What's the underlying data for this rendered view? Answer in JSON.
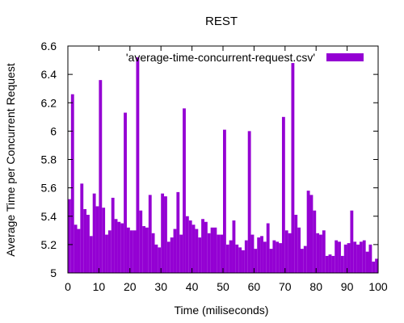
{
  "chart_data": {
    "type": "bar",
    "title": "REST",
    "xlabel": "Time (miliseconds)",
    "ylabel": "Average Time per Concurrent Request",
    "xlim": [
      0,
      100
    ],
    "ylim": [
      5,
      6.6
    ],
    "xticks": [
      0,
      10,
      20,
      30,
      40,
      50,
      60,
      70,
      80,
      90,
      100
    ],
    "yticks": [
      5,
      5.2,
      5.4,
      5.6,
      5.8,
      6,
      6.2,
      6.4,
      6.6
    ],
    "ytick_labels": [
      "5",
      "5.2",
      "5.4",
      "5.6",
      "5.8",
      "6",
      "6.2",
      "6.4",
      "6.6"
    ],
    "grid": false,
    "legend_position": "top-right",
    "bar_color": "#9400d3",
    "series": [
      {
        "name": "'average-time-concurrent-request.csv'",
        "x": [
          1,
          2,
          3,
          4,
          5,
          6,
          7,
          8,
          9,
          10,
          11,
          12,
          13,
          14,
          15,
          16,
          17,
          18,
          19,
          20,
          21,
          22,
          23,
          24,
          25,
          26,
          27,
          28,
          29,
          30,
          31,
          32,
          33,
          34,
          35,
          36,
          37,
          38,
          39,
          40,
          41,
          42,
          43,
          44,
          45,
          46,
          47,
          48,
          49,
          50,
          51,
          52,
          53,
          54,
          55,
          56,
          57,
          58,
          59,
          60,
          61,
          62,
          63,
          64,
          65,
          66,
          67,
          68,
          69,
          70,
          71,
          72,
          73,
          74,
          75,
          76,
          77,
          78,
          79,
          80,
          81,
          82,
          83,
          84,
          85,
          86,
          87,
          88,
          89,
          90,
          91,
          92,
          93,
          94,
          95,
          96,
          97,
          98,
          99,
          100
        ],
        "values": [
          5.52,
          6.26,
          5.34,
          5.31,
          5.63,
          5.45,
          5.41,
          5.26,
          5.56,
          5.47,
          6.36,
          5.46,
          5.27,
          5.3,
          5.53,
          5.38,
          5.36,
          5.35,
          6.13,
          5.32,
          5.3,
          5.3,
          6.52,
          5.44,
          5.33,
          5.32,
          5.55,
          5.28,
          5.2,
          5.18,
          5.56,
          5.54,
          5.22,
          5.25,
          5.31,
          5.57,
          5.27,
          6.16,
          5.4,
          5.37,
          5.34,
          5.31,
          5.25,
          5.38,
          5.36,
          5.28,
          5.32,
          5.32,
          5.27,
          5.27,
          6.01,
          5.2,
          5.23,
          5.37,
          5.2,
          5.18,
          5.16,
          5.23,
          6.0,
          5.27,
          5.17,
          5.25,
          5.26,
          5.22,
          5.35,
          5.17,
          5.23,
          5.22,
          5.21,
          6.1,
          5.3,
          5.28,
          6.48,
          5.41,
          5.32,
          5.17,
          5.19,
          5.58,
          5.55,
          5.44,
          5.28,
          5.27,
          5.3,
          5.12,
          5.13,
          5.12,
          5.23,
          5.22,
          5.12,
          5.2,
          5.21,
          5.44,
          5.22,
          5.2,
          5.22,
          5.23,
          5.15,
          5.2,
          5.08,
          5.1
        ]
      }
    ]
  }
}
